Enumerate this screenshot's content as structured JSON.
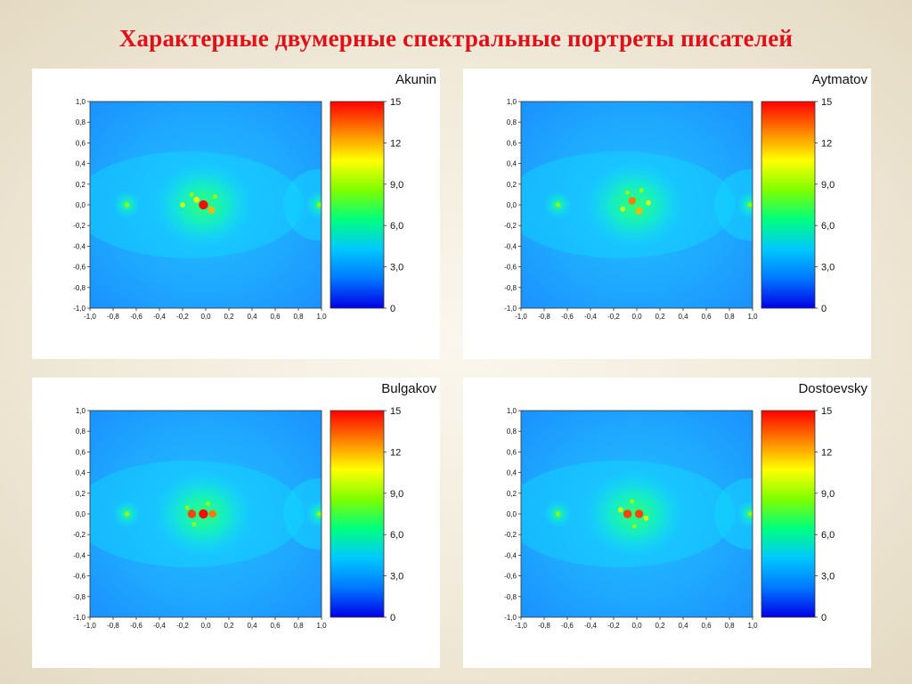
{
  "slide": {
    "title": "Характерные двумерные спектральные портреты писателей"
  },
  "colors": {
    "title": "#e0101a",
    "colormap": [
      "#0000e6",
      "#0078ff",
      "#00c8ff",
      "#00ff7f",
      "#7fff00",
      "#ffff00",
      "#ff8000",
      "#ff0000"
    ]
  },
  "chart_data": [
    {
      "type": "heatmap",
      "title": "Akunin",
      "x_ticks": [
        "-1,0",
        "-0,8",
        "-0,6",
        "-0,4",
        "-0,2",
        "0,0",
        "0,2",
        "0,4",
        "0,6",
        "0,8",
        "1,0"
      ],
      "y_ticks": [
        "1,0",
        "0,8",
        "0,6",
        "0,4",
        "0,2",
        "0,0",
        "-0,2",
        "-0,4",
        "-0,6",
        "-0,8",
        "-1,0"
      ],
      "xlim": [
        -1,
        1
      ],
      "ylim": [
        -1,
        1
      ],
      "colorbar": {
        "ticks": [
          "15",
          "12",
          "9,0",
          "6,0",
          "3,0",
          "0"
        ],
        "range": [
          0,
          15
        ]
      },
      "background_value": 3.5,
      "peaks": [
        {
          "x": -0.02,
          "y": 0.0,
          "value": 15
        },
        {
          "x": -0.08,
          "y": 0.05,
          "value": 11
        },
        {
          "x": 0.05,
          "y": -0.05,
          "value": 12
        },
        {
          "x": -0.2,
          "y": 0.0,
          "value": 10
        },
        {
          "x": -0.12,
          "y": 0.1,
          "value": 9
        },
        {
          "x": 0.08,
          "y": 0.08,
          "value": 9
        },
        {
          "x": -0.68,
          "y": 0.0,
          "value": 9
        },
        {
          "x": 0.98,
          "y": 0.0,
          "value": 9
        }
      ]
    },
    {
      "type": "heatmap",
      "title": "Aytmatov",
      "x_ticks": [
        "-1,0",
        "-0,8",
        "-0,6",
        "-0,4",
        "-0,2",
        "0,0",
        "0,2",
        "0,4",
        "0,6",
        "0,8",
        "1,0"
      ],
      "y_ticks": [
        "1,0",
        "0,8",
        "0,6",
        "0,4",
        "0,2",
        "0,0",
        "-0,2",
        "-0,4",
        "-0,6",
        "-0,8",
        "-1,0"
      ],
      "xlim": [
        -1,
        1
      ],
      "ylim": [
        -1,
        1
      ],
      "colorbar": {
        "ticks": [
          "15",
          "12",
          "9,0",
          "6,0",
          "3,0",
          "0"
        ],
        "range": [
          0,
          15
        ]
      },
      "background_value": 3.5,
      "peaks": [
        {
          "x": -0.04,
          "y": 0.04,
          "value": 13
        },
        {
          "x": 0.02,
          "y": -0.06,
          "value": 12
        },
        {
          "x": -0.12,
          "y": -0.04,
          "value": 10
        },
        {
          "x": 0.1,
          "y": 0.02,
          "value": 10
        },
        {
          "x": -0.08,
          "y": 0.12,
          "value": 9
        },
        {
          "x": 0.04,
          "y": 0.14,
          "value": 9
        },
        {
          "x": -0.68,
          "y": 0.0,
          "value": 9
        },
        {
          "x": 0.98,
          "y": 0.0,
          "value": 9
        }
      ]
    },
    {
      "type": "heatmap",
      "title": "Bulgakov",
      "x_ticks": [
        "-1,0",
        "-0,8",
        "-0,6",
        "-0,4",
        "-0,2",
        "0,0",
        "0,2",
        "0,4",
        "0,6",
        "0,8",
        "1,0"
      ],
      "y_ticks": [
        "1,0",
        "0,8",
        "0,6",
        "0,4",
        "0,2",
        "0,0",
        "-0,2",
        "-0,4",
        "-0,6",
        "-0,8",
        "-1,0"
      ],
      "xlim": [
        -1,
        1
      ],
      "ylim": [
        -1,
        1
      ],
      "colorbar": {
        "ticks": [
          "15",
          "12",
          "9,0",
          "6,0",
          "3,0",
          "0"
        ],
        "range": [
          0,
          15
        ]
      },
      "background_value": 3.5,
      "peaks": [
        {
          "x": -0.02,
          "y": 0.0,
          "value": 15
        },
        {
          "x": -0.12,
          "y": 0.0,
          "value": 14
        },
        {
          "x": 0.06,
          "y": 0.0,
          "value": 13
        },
        {
          "x": -0.16,
          "y": 0.06,
          "value": 9
        },
        {
          "x": -0.1,
          "y": -0.1,
          "value": 9
        },
        {
          "x": 0.02,
          "y": 0.1,
          "value": 9
        },
        {
          "x": -0.68,
          "y": 0.0,
          "value": 9
        },
        {
          "x": 0.98,
          "y": 0.0,
          "value": 9
        }
      ]
    },
    {
      "type": "heatmap",
      "title": "Dostoevsky",
      "x_ticks": [
        "-1,0",
        "-0,8",
        "-0,6",
        "-0,4",
        "-0,2",
        "0,0",
        "0,2",
        "0,4",
        "0,6",
        "0,8",
        "1,0"
      ],
      "y_ticks": [
        "1,0",
        "0,8",
        "0,6",
        "0,4",
        "0,2",
        "0,0",
        "-0,2",
        "-0,4",
        "-0,6",
        "-0,8",
        "-1,0"
      ],
      "xlim": [
        -1,
        1
      ],
      "ylim": [
        -1,
        1
      ],
      "colorbar": {
        "ticks": [
          "15",
          "12",
          "9,0",
          "6,0",
          "3,0",
          "0"
        ],
        "range": [
          0,
          15
        ]
      },
      "background_value": 3.5,
      "peaks": [
        {
          "x": -0.08,
          "y": 0.0,
          "value": 14
        },
        {
          "x": 0.02,
          "y": 0.0,
          "value": 14
        },
        {
          "x": -0.14,
          "y": 0.04,
          "value": 10
        },
        {
          "x": 0.08,
          "y": -0.04,
          "value": 10
        },
        {
          "x": -0.04,
          "y": 0.12,
          "value": 9
        },
        {
          "x": -0.02,
          "y": -0.12,
          "value": 9
        },
        {
          "x": -0.68,
          "y": 0.0,
          "value": 9
        },
        {
          "x": 0.98,
          "y": 0.0,
          "value": 9
        }
      ]
    }
  ]
}
